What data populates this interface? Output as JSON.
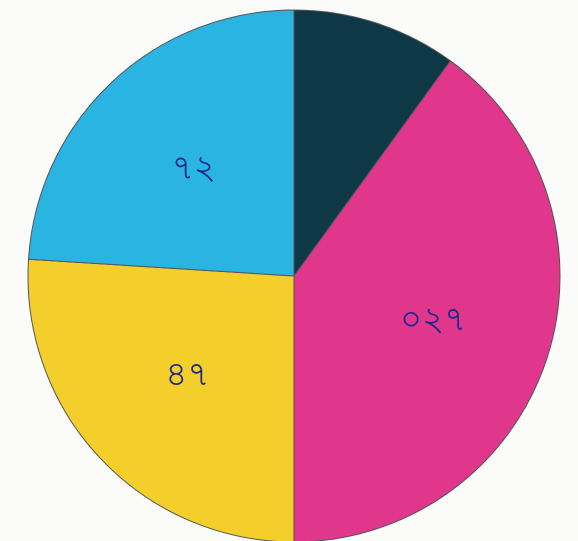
{
  "chart_data": {
    "type": "pie",
    "categories": [
      null,
      "০২৭",
      "৪৭",
      "৭২"
    ],
    "values": [
      10,
      40,
      26,
      24
    ],
    "colors": [
      "#0f3846",
      "#e0378d",
      "#f4cf2c",
      "#2ab4e2"
    ]
  }
}
